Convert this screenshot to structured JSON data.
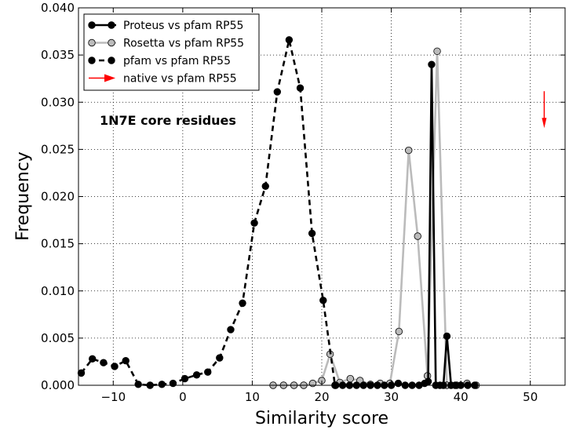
{
  "chart_data": {
    "type": "line",
    "title": "",
    "xlabel": "Similarity score",
    "ylabel": "Frequency",
    "xlim": [
      -15,
      55
    ],
    "ylim": [
      0,
      0.04
    ],
    "xticks": [
      -10,
      0,
      10,
      20,
      30,
      40,
      50
    ],
    "yticks": [
      0.0,
      0.005,
      0.01,
      0.015,
      0.02,
      0.025,
      0.03,
      0.035,
      0.04
    ],
    "xtick_labels": [
      "−10",
      "0",
      "10",
      "20",
      "30",
      "40",
      "50"
    ],
    "ytick_labels": [
      "0.000",
      "0.005",
      "0.010",
      "0.015",
      "0.020",
      "0.025",
      "0.030",
      "0.035",
      "0.040"
    ],
    "grid": true,
    "legend_position": "top-left",
    "annotation": "1N7E core residues",
    "series": [
      {
        "name": "Proteus vs pfam RP55",
        "color": "#000000",
        "line_style": "solid",
        "marker_color": "#000000",
        "x": [
          22,
          23,
          24,
          25,
          26,
          27,
          28,
          29,
          30,
          31,
          32,
          33,
          34,
          34.8,
          35.3,
          35.8,
          36.4,
          37,
          37.5,
          38,
          38.6,
          39.2,
          40,
          41,
          42
        ],
        "values": [
          0.0,
          0.0,
          0.0,
          0.0,
          0.0,
          0.0,
          0.0,
          0.0,
          0.0,
          0.0002,
          0.0,
          0.0,
          0.0,
          0.0002,
          0.0004,
          0.034,
          0.0,
          0.0,
          0.0,
          0.0052,
          0.0,
          0.0,
          0.0,
          0.0,
          0.0
        ]
      },
      {
        "name": "Rosetta vs pfam RP55",
        "color": "#bbbbbb",
        "line_style": "solid",
        "marker_color": "#bbbbbb",
        "x": [
          13,
          14.5,
          16,
          17.4,
          18.7,
          20,
          21.2,
          22.6,
          24.1,
          25.5,
          27,
          28.4,
          29.8,
          31.1,
          32.5,
          33.8,
          35.2,
          36.6,
          38,
          39.4,
          40.9,
          42.2
        ],
        "values": [
          0.0,
          0.0,
          0.0,
          0.0,
          0.0002,
          0.0005,
          0.0033,
          0.0003,
          0.0007,
          0.0005,
          0.0001,
          0.0002,
          0.0002,
          0.0057,
          0.0249,
          0.0158,
          0.001,
          0.0354,
          0.0,
          0.0,
          0.0002,
          0.0
        ]
      },
      {
        "name": "pfam vs pfam RP55",
        "color": "#000000",
        "line_style": "dashed",
        "marker_color": "#000000",
        "x": [
          -14.6,
          -13,
          -11.4,
          -9.8,
          -8.2,
          -6.4,
          -4.7,
          -3,
          -1.4,
          0.3,
          2,
          3.6,
          5.3,
          6.9,
          8.6,
          10.3,
          11.9,
          13.6,
          15.3,
          16.9,
          18.6,
          20.2,
          21.9
        ],
        "values": [
          0.0013,
          0.0028,
          0.0024,
          0.002,
          0.0026,
          0.0001,
          0.0,
          0.0001,
          0.0002,
          0.0007,
          0.0011,
          0.0014,
          0.0029,
          0.0059,
          0.0087,
          0.0172,
          0.0211,
          0.0311,
          0.0366,
          0.0315,
          0.0161,
          0.009,
          0.0
        ]
      },
      {
        "name": "native vs pfam RP55",
        "color": "#ff0000",
        "line_style": "arrow",
        "x": [
          52
        ],
        "values": [
          0.031
        ]
      }
    ]
  }
}
